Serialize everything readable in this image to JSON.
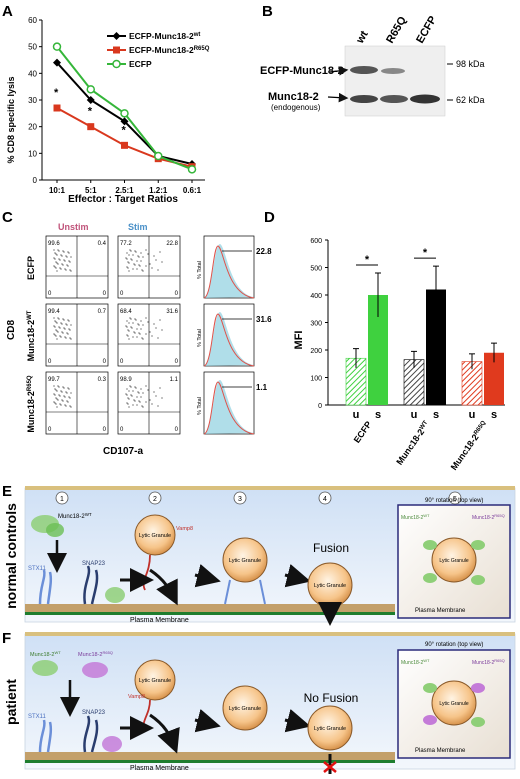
{
  "panel_labels": {
    "a": "A",
    "b": "B",
    "c": "C",
    "d": "D",
    "e": "E",
    "f": "F"
  },
  "panel_a": {
    "chart_data": {
      "type": "line",
      "ylabel": "% CD8 specific lysis",
      "xlabel": "Effector : Target Ratios",
      "categories": [
        "10:1",
        "5:1",
        "2.5:1",
        "1.2:1",
        "0.6:1"
      ],
      "yticks": [
        "0",
        "10",
        "20",
        "30",
        "40",
        "50",
        "60"
      ],
      "ylim": [
        0,
        60
      ],
      "series": [
        {
          "name": "ECFP-Munc18-2",
          "sup": "wt",
          "color": "#000000",
          "marker": "diamond",
          "values": [
            44,
            30,
            22,
            9,
            6
          ]
        },
        {
          "name": "ECFP-Munc18-2",
          "sup": "R65Q",
          "color": "#d9381e",
          "marker": "square",
          "values": [
            27,
            20,
            13,
            8,
            5
          ]
        },
        {
          "name": "ECFP",
          "sup": "",
          "color": "#35b63a",
          "marker": "circle-open",
          "values": [
            50,
            34,
            25,
            9,
            4
          ]
        }
      ],
      "sig_label": "*"
    }
  },
  "panel_b": {
    "lanes": [
      "wt",
      "R65Q",
      "ECFP"
    ],
    "markers": [
      "98 kDa",
      "62 kDa"
    ],
    "band_labels": {
      "fusion": "ECFP-Munc18-2",
      "endo": "Munc18-2",
      "endo_sub": "(endogenous)"
    }
  },
  "panel_c": {
    "col_unstim": "Unstim",
    "col_stim": "Stim",
    "ylabel": "CD8",
    "xlabel": "CD107-a",
    "hist_ylabel": "% Total",
    "rows": [
      {
        "label": "ECFP",
        "sup": "",
        "u": [
          "99.6",
          "0.4",
          "0",
          "0"
        ],
        "s": [
          "77.2",
          "22.8",
          "0",
          "0"
        ],
        "gate": "22.8"
      },
      {
        "label": "Munc18-2",
        "sup": "WT",
        "u": [
          "99.4",
          "0.7",
          "0",
          "0"
        ],
        "s": [
          "68.4",
          "31.6",
          "0",
          "0"
        ],
        "gate": "31.6"
      },
      {
        "label": "Munc18-2",
        "sup": "R65Q",
        "u": [
          "99.7",
          "0.3",
          "0",
          "0"
        ],
        "s": [
          "98.9",
          "1.1",
          "0",
          "0"
        ],
        "gate": "1.1"
      }
    ]
  },
  "panel_d": {
    "chart_data": {
      "type": "bar",
      "ylabel": "MFI",
      "yticks": [
        "0",
        "100",
        "200",
        "300",
        "400",
        "500",
        "600"
      ],
      "ylim": [
        0,
        600
      ],
      "groups": [
        {
          "name": "ECFP",
          "sup": "",
          "color": "#3fd13f",
          "u": 170,
          "s": 400,
          "u_err": 35,
          "s_err": 80
        },
        {
          "name": "Munc18-2",
          "sup": "WT",
          "color": "#000000",
          "u": 165,
          "s": 420,
          "u_err": 30,
          "s_err": 85
        },
        {
          "name": "Munc18-2",
          "sup": "R65Q",
          "color": "#e03a1e",
          "u": 158,
          "s": 190,
          "u_err": 28,
          "s_err": 35
        }
      ],
      "u_label": "u",
      "s_label": "s",
      "sig": "*"
    }
  },
  "panel_e": {
    "side": "normal controls",
    "steps": [
      "1",
      "2",
      "3",
      "4",
      "5"
    ],
    "munc": "Munc18-2",
    "munc_sup": "WT",
    "stx": "STX11",
    "snap": "SNAP23",
    "vamp": "Vamp8",
    "granule": "Lytic Granule",
    "membrane": "Plasma Membrane",
    "fusion": "Fusion",
    "rotation": "90° rotation (top view)",
    "inset_a": "Munc18-2",
    "inset_a_sup": "WT",
    "inset_b": "Munc18-2",
    "inset_b_sup": "R65Q"
  },
  "panel_f": {
    "side": "patient",
    "munc_wt": "Munc18-2",
    "munc_wt_sup": "WT",
    "munc_mut": "Munc18-2",
    "munc_mut_sup": "R65Q",
    "stx": "STX11",
    "snap": "SNAP23",
    "vamp": "Vamp8",
    "granule": "Lytic Granule",
    "membrane": "Plasma Membrane",
    "nofusion": "No Fusion",
    "rotation": "90° rotation (top view)",
    "inset_a": "Munc18-2",
    "inset_a_sup": "WT",
    "inset_b": "Munc18-2",
    "inset_b_sup": "R65Q"
  }
}
